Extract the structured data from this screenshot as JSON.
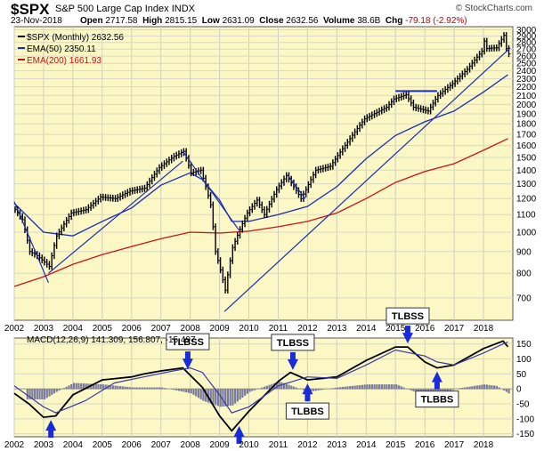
{
  "header": {
    "symbol": "$SPX",
    "name": "S&P 500 Large Cap Index",
    "exchange": "INDX",
    "source": "© StockCharts.com",
    "date": "23-Nov-2018",
    "open_label": "Open",
    "open": "2717.58",
    "high_label": "High",
    "high": "2815.15",
    "low_label": "Low",
    "low": "2631.09",
    "close_label": "Close",
    "close": "2632.56",
    "volume_label": "Volume",
    "volume": "38.6B",
    "chg_label": "Chg",
    "chg": "-79.18 (-2.92%)"
  },
  "legend": {
    "price": "$SPX (Monthly) 2632.56",
    "ema50": "EMA(50) 2350.11",
    "ema200": "EMA(200) 1661.93",
    "macd": "MACD(12,26,9) 141.309, 156.807, -15.497"
  },
  "colors": {
    "panel_bg": "#fbf8c6",
    "price": "#000000",
    "ema50": "#1c2bb8",
    "ema200": "#c8141c",
    "trendline": "#1c2bb8",
    "macd_line": "#000000",
    "signal_line": "#3a3aa8",
    "histogram": "#7a7a9a",
    "arrow": "#1a2bd9"
  },
  "chart_data": [
    {
      "type": "line",
      "panel": "price",
      "y_scale": "log",
      "ylim": [
        620,
        3050
      ],
      "x_range": [
        "2002-01",
        "2018-12"
      ],
      "x_ticks": [
        "2002",
        "2003",
        "2004",
        "2005",
        "2006",
        "2007",
        "2008",
        "2009",
        "2010",
        "2011",
        "2012",
        "2013",
        "2014",
        "2015",
        "2016",
        "2017",
        "2018"
      ],
      "y_ticks": [
        700,
        800,
        900,
        1000,
        1100,
        1200,
        1300,
        1400,
        1500,
        1600,
        1700,
        1800,
        1900,
        2000,
        2100,
        2200,
        2300,
        2400,
        2500,
        2600,
        2700,
        2800,
        2900,
        3000
      ],
      "grid": true,
      "legend_position": "top-left",
      "series": [
        {
          "name": "$SPX (Monthly)",
          "style": "ohlc-bars",
          "x": [
            "2002-01",
            "2002-04",
            "2002-07",
            "2002-10",
            "2003-03",
            "2003-06",
            "2003-12",
            "2004-06",
            "2004-12",
            "2005-06",
            "2005-12",
            "2006-06",
            "2006-12",
            "2007-06",
            "2007-10",
            "2008-01",
            "2008-05",
            "2008-09",
            "2008-11",
            "2009-03",
            "2009-06",
            "2009-12",
            "2010-04",
            "2010-07",
            "2010-12",
            "2011-04",
            "2011-10",
            "2011-12",
            "2012-04",
            "2012-10",
            "2013-05",
            "2013-12",
            "2014-09",
            "2014-12",
            "2015-05",
            "2015-08",
            "2016-02",
            "2016-06",
            "2016-12",
            "2017-06",
            "2017-12",
            "2018-01",
            "2018-02",
            "2018-06",
            "2018-09",
            "2018-10",
            "2018-11"
          ],
          "values": [
            1130,
            1070,
            900,
            880,
            830,
            980,
            1110,
            1130,
            1210,
            1200,
            1250,
            1270,
            1420,
            1510,
            1550,
            1380,
            1400,
            1160,
            900,
            730,
            920,
            1110,
            1190,
            1100,
            1260,
            1360,
            1200,
            1260,
            1400,
            1430,
            1630,
            1850,
            1970,
            2060,
            2110,
            1970,
            1930,
            2100,
            2240,
            2420,
            2670,
            2820,
            2710,
            2720,
            2910,
            2710,
            2633
          ]
        },
        {
          "name": "EMA(50)",
          "x": [
            "2002-01",
            "2003-01",
            "2004-01",
            "2005-01",
            "2006-01",
            "2007-01",
            "2008-01",
            "2008-06",
            "2009-01",
            "2009-06",
            "2010-01",
            "2011-01",
            "2012-01",
            "2013-01",
            "2014-01",
            "2015-01",
            "2016-01",
            "2017-01",
            "2018-01",
            "2018-11"
          ],
          "values": [
            1170,
            1000,
            980,
            1060,
            1140,
            1290,
            1380,
            1330,
            1190,
            1060,
            1060,
            1100,
            1150,
            1280,
            1490,
            1690,
            1820,
            1930,
            2140,
            2350
          ]
        },
        {
          "name": "EMA(200)",
          "x": [
            "2002-01",
            "2003-01",
            "2004-01",
            "2005-01",
            "2006-01",
            "2007-01",
            "2008-01",
            "2009-01",
            "2010-01",
            "2011-01",
            "2012-01",
            "2013-01",
            "2014-01",
            "2015-01",
            "2016-01",
            "2017-01",
            "2018-01",
            "2018-11"
          ],
          "values": [
            745,
            785,
            840,
            885,
            925,
            965,
            1000,
            995,
            1005,
            1030,
            1060,
            1110,
            1200,
            1310,
            1390,
            1450,
            1560,
            1662
          ]
        }
      ],
      "trendlines": [
        {
          "from": [
            "2002-01",
            1180
          ],
          "to": [
            "2003-03",
            760
          ]
        },
        {
          "from": [
            "2003-03",
            800
          ],
          "to": [
            "2007-10",
            1470
          ]
        },
        {
          "from": [
            "2007-10",
            1550
          ],
          "to": [
            "2009-09",
            1010
          ]
        },
        {
          "from": [
            "2009-03",
            650
          ],
          "to": [
            "2018-12",
            2720
          ]
        },
        {
          "from": [
            "2011-05",
            1360
          ],
          "to": [
            "2011-12",
            1200
          ]
        },
        {
          "from": [
            "2015-01",
            2150
          ],
          "to": [
            "2016-06",
            2150
          ]
        }
      ]
    },
    {
      "type": "line",
      "panel": "macd",
      "ylim": [
        -160,
        170
      ],
      "x_range": [
        "2002-01",
        "2018-12"
      ],
      "x_ticks": [
        "2002",
        "2003",
        "2004",
        "2005",
        "2006",
        "2007",
        "2008",
        "2009",
        "2010",
        "2011",
        "2012",
        "2013",
        "2014",
        "2015",
        "2016",
        "2017",
        "2018"
      ],
      "y_ticks": [
        -150,
        -100,
        -50,
        0,
        50,
        100,
        150
      ],
      "grid": true,
      "legend_position": "top-left",
      "series": [
        {
          "name": "MACD(12,26,9)",
          "x": [
            "2002-01",
            "2002-07",
            "2003-01",
            "2003-06",
            "2004-01",
            "2005-01",
            "2006-01",
            "2006-06",
            "2007-01",
            "2007-10",
            "2008-06",
            "2009-01",
            "2009-06",
            "2010-01",
            "2011-01",
            "2011-06",
            "2012-01",
            "2013-01",
            "2014-01",
            "2015-01",
            "2015-06",
            "2016-01",
            "2016-06",
            "2017-01",
            "2018-01",
            "2018-09",
            "2018-11"
          ],
          "values": [
            -15,
            -50,
            -95,
            -90,
            -20,
            30,
            40,
            50,
            60,
            70,
            5,
            -90,
            -140,
            -75,
            25,
            55,
            30,
            40,
            95,
            140,
            140,
            90,
            70,
            80,
            135,
            160,
            141
          ]
        },
        {
          "name": "Signal",
          "x": [
            "2002-01",
            "2003-01",
            "2003-06",
            "2004-06",
            "2005-06",
            "2006-06",
            "2007-06",
            "2008-01",
            "2008-06",
            "2009-01",
            "2009-06",
            "2010-01",
            "2011-01",
            "2012-01",
            "2013-01",
            "2014-01",
            "2015-01",
            "2016-01",
            "2016-06",
            "2017-01",
            "2018-01",
            "2018-09",
            "2018-11"
          ],
          "values": [
            10,
            -60,
            -80,
            -40,
            20,
            40,
            60,
            70,
            55,
            -20,
            -80,
            -60,
            10,
            40,
            35,
            80,
            130,
            110,
            90,
            80,
            120,
            150,
            157
          ]
        },
        {
          "name": "Histogram",
          "style": "bars",
          "x": [
            "2002-06",
            "2003-01",
            "2003-06",
            "2004-01",
            "2005-01",
            "2006-01",
            "2007-01",
            "2008-01",
            "2008-06",
            "2009-01",
            "2009-06",
            "2010-01",
            "2011-01",
            "2012-01",
            "2013-01",
            "2014-01",
            "2015-01",
            "2016-01",
            "2016-06",
            "2017-01",
            "2018-01",
            "2018-06",
            "2018-11"
          ],
          "values": [
            -35,
            -35,
            -10,
            20,
            15,
            5,
            5,
            -15,
            -40,
            -60,
            -55,
            -10,
            25,
            -10,
            5,
            15,
            15,
            -25,
            -25,
            0,
            15,
            10,
            -15
          ]
        }
      ],
      "annotations": [
        {
          "text": "TLBSS",
          "x": "2007-12",
          "arrow": "down"
        },
        {
          "text": "TLBSS",
          "x": "2011-07",
          "arrow": "down"
        },
        {
          "text": "TLBBS",
          "x": "2012-01",
          "arrow": "up"
        },
        {
          "text": "TLBSS",
          "x": "2015-06",
          "arrow": "down"
        },
        {
          "text": "TLBBS",
          "x": "2016-06",
          "arrow": "up"
        },
        {
          "text": "",
          "x": "2003-04",
          "arrow": "up"
        },
        {
          "text": "",
          "x": "2009-09",
          "arrow": "up"
        }
      ]
    }
  ]
}
